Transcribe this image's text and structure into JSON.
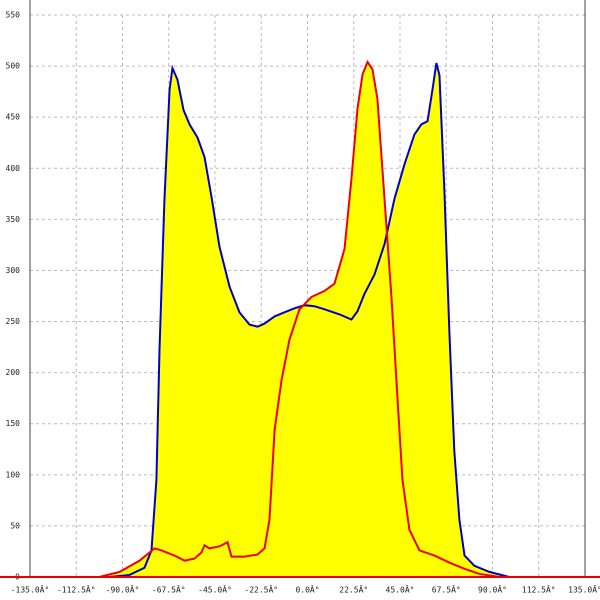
{
  "chart_data": {
    "type": "area",
    "xlim": [
      -135,
      135
    ],
    "ylim": [
      0,
      550
    ],
    "xticks": [
      {
        "value": -135,
        "label": "-135.0Â°"
      },
      {
        "value": -112.5,
        "label": "-112.5Â°"
      },
      {
        "value": -90,
        "label": "-90.0Â°"
      },
      {
        "value": -67.5,
        "label": "-67.5Â°"
      },
      {
        "value": -45,
        "label": "-45.0Â°"
      },
      {
        "value": -22.5,
        "label": "-22.5Â°"
      },
      {
        "value": 0,
        "label": "0.0Â°"
      },
      {
        "value": 22.5,
        "label": "22.5Â°"
      },
      {
        "value": 45,
        "label": "45.0Â°"
      },
      {
        "value": 67.5,
        "label": "67.5Â°"
      },
      {
        "value": 90,
        "label": "90.0Â°"
      },
      {
        "value": 112.5,
        "label": "112.5Â°"
      },
      {
        "value": 135,
        "label": "135.0Â°"
      }
    ],
    "yticks": [
      0,
      50,
      100,
      150,
      200,
      250,
      300,
      350,
      400,
      450,
      500,
      550
    ],
    "grid": true,
    "fill_color": "#ffff00",
    "series": [
      {
        "color": "#0000cc",
        "x": [
          -96.3,
          -86.6,
          -79.3,
          -75.9,
          -73.5,
          -72.0,
          -69.6,
          -67.1,
          -65.7,
          -63.3,
          -60.3,
          -57.4,
          -53.5,
          -50.1,
          -46.7,
          -42.8,
          -37.9,
          -33.1,
          -28.2,
          -24.3,
          -20.9,
          -16.0,
          -11.2,
          -6.3,
          -1.5,
          3.4,
          8.3,
          15.6,
          21.4,
          24.3,
          27.7,
          32.6,
          37.5,
          42.3,
          47.2,
          52.0,
          55.4,
          58.4,
          60.8,
          62.7,
          64.2,
          66.6,
          69.0,
          71.4,
          73.9,
          76.4,
          81.2,
          88.5,
          98.2
        ],
        "values": [
          0,
          2,
          9,
          26,
          95,
          222,
          369,
          477,
          498,
          487,
          457,
          443,
          430,
          411,
          372,
          323,
          284,
          259,
          247,
          245,
          248,
          255,
          259,
          263,
          266,
          265,
          262,
          257,
          252,
          260,
          277,
          296,
          326,
          370,
          404,
          433,
          443,
          446,
          477,
          503,
          491,
          378,
          241,
          124,
          56,
          21,
          11,
          5,
          0
        ]
      },
      {
        "color": "#ee0000",
        "x": [
          -101.2,
          -91.4,
          -81.7,
          -74.4,
          -71.0,
          -64.7,
          -59.8,
          -55.0,
          -51.6,
          -50.1,
          -47.7,
          -42.8,
          -38.9,
          -37.0,
          -30.6,
          -24.3,
          -20.9,
          -18.5,
          -16.0,
          -12.6,
          -8.8,
          -3.9,
          1.9,
          8.3,
          13.1,
          18.0,
          21.4,
          24.3,
          26.8,
          29.2,
          31.6,
          34.0,
          37.5,
          40.9,
          43.8,
          46.2,
          49.6,
          54.5,
          61.8,
          69.1,
          76.4,
          83.7,
          93.4
        ],
        "values": [
          0,
          5,
          16,
          28,
          26,
          21,
          16,
          18,
          24,
          31,
          28,
          30,
          34,
          20,
          20,
          22,
          28,
          56,
          144,
          193,
          232,
          262,
          274,
          280,
          287,
          321,
          390,
          458,
          492,
          504,
          497,
          468,
          369,
          272,
          174,
          95,
          46,
          26,
          21,
          14,
          8,
          3,
          0
        ]
      }
    ]
  }
}
